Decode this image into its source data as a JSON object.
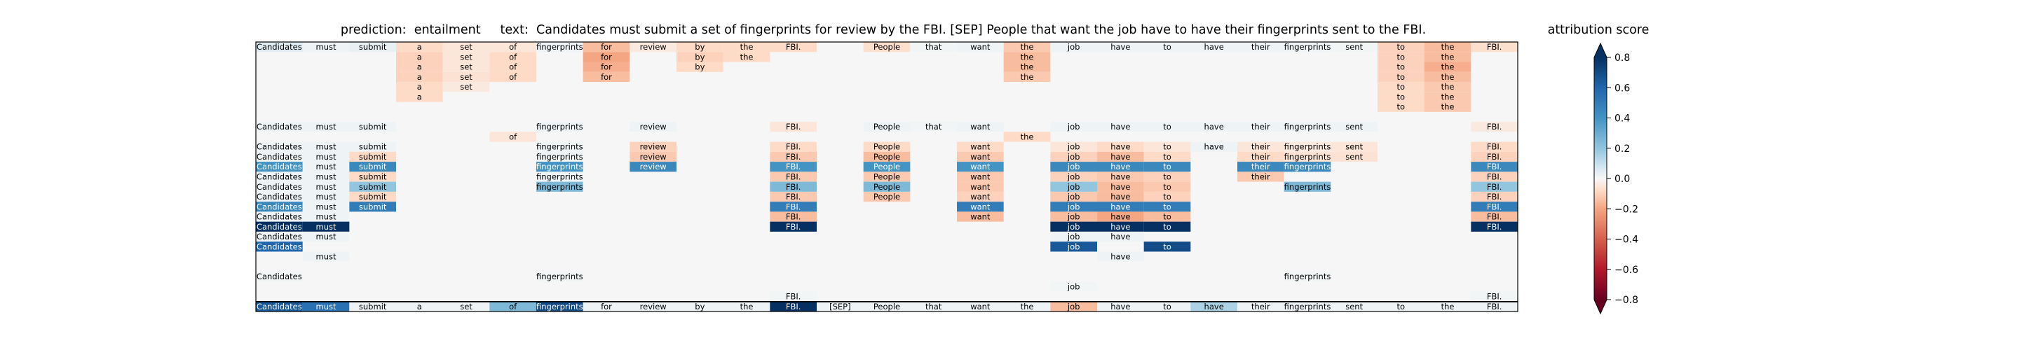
{
  "title": {
    "prefix": "prediction:",
    "prediction": "entailment",
    "text_prefix": "text:",
    "text": "Candidates must submit a set of fingerprints for review by the FBI. [SEP] People that want the job have to have their fingerprints sent to the FBI."
  },
  "colorbar": {
    "label": "attribution score",
    "ticks": [
      "0.8",
      "0.6",
      "0.4",
      "0.2",
      "0.0",
      "−0.2",
      "−0.4",
      "−0.6",
      "−0.8"
    ],
    "range": [
      -0.8,
      0.8
    ],
    "colormap": "RdBu",
    "extend": "both"
  },
  "colors": {
    "background": "#f6f6f6",
    "neg_strong": "#67001f",
    "neg_mid": "#d6604d",
    "neg_light": "#fddbc7",
    "neutral": "#f7f7f7",
    "pos_light": "#d1e5f0",
    "pos_mid": "#4393c3",
    "pos_strong": "#053061"
  },
  "chart_data": {
    "type": "heatmap",
    "columns": [
      "Candidates",
      "must",
      "submit",
      "a",
      "set",
      "of",
      "fingerprints",
      "for",
      "review",
      "by",
      "the",
      "FBI.",
      "[SEP]",
      "People",
      "that",
      "want",
      "the",
      "job",
      "have",
      "to",
      "have",
      "their",
      "fingerprints",
      "sent",
      "to",
      "the",
      "FBI."
    ],
    "rows": [
      {
        "Candidates": 0.05,
        "must": 0.02,
        "submit": 0.03,
        "a": -0.08,
        "set": -0.05,
        "of": -0.05,
        "fingerprints": 0.02,
        "for": -0.15,
        "review": -0.04,
        "by": -0.08,
        "the": -0.08,
        "FBI.": -0.08,
        "People": -0.07,
        "that": 0.01,
        "want": 0.02,
        "the#2": -0.12,
        "job": 0.02,
        "have": 0.02,
        "to": 0.02,
        "have#2": 0.02,
        "their": 0.02,
        "fingerprints#2": 0.02,
        "sent": 0.01,
        "to#2": -0.1,
        "the#3": -0.15,
        "FBI.#2": -0.07
      },
      {
        "a": -0.1,
        "set": -0.05,
        "of": -0.08,
        "for": -0.2,
        "by": -0.1,
        "the": -0.08,
        "the#2": -0.15,
        "to#2": -0.1,
        "the#3": -0.15
      },
      {
        "a": -0.1,
        "set": -0.05,
        "of": -0.08,
        "for": -0.18,
        "by": -0.08,
        "the#2": -0.15,
        "to#2": -0.1,
        "the#3": -0.18
      },
      {
        "a": -0.1,
        "set": -0.06,
        "of": -0.08,
        "for": -0.15,
        "the#2": -0.12,
        "to#2": -0.1,
        "the#3": -0.15
      },
      {
        "a": -0.08,
        "set": -0.04,
        "to#2": -0.08,
        "the#3": -0.12
      },
      {
        "a": -0.08,
        "to#2": -0.08,
        "the#3": -0.12
      },
      {
        "to#2": -0.08,
        "the#3": -0.12
      },
      {},
      {
        "Candidates": 0.02,
        "must": 0.02,
        "submit": 0.02,
        "fingerprints": 0.02,
        "review": 0.02,
        "FBI.": -0.05,
        "People": 0.02,
        "that": 0.01,
        "want": 0.02,
        "job": 0.02,
        "have": 0.02,
        "to": 0.02,
        "have#2": 0.02,
        "their": 0.02,
        "fingerprints#2": 0.02,
        "sent": 0.02,
        "FBI.#2": -0.04
      },
      {
        "of": -0.05,
        "the#2": -0.08
      },
      {
        "Candidates": 0.02,
        "must": 0.02,
        "submit": 0.02,
        "fingerprints": 0.02,
        "review": -0.1,
        "FBI.": -0.08,
        "People": -0.08,
        "want": -0.08,
        "job": -0.05,
        "have": -0.08,
        "to": -0.05,
        "have#2": 0.02,
        "their": -0.05,
        "fingerprints#2": -0.04,
        "sent": -0.05,
        "FBI.#2": -0.08
      },
      {
        "Candidates": 0.02,
        "must": 0.02,
        "submit": -0.08,
        "fingerprints": 0.02,
        "review": -0.12,
        "FBI.": -0.12,
        "People": -0.15,
        "want": -0.12,
        "job": -0.1,
        "have": -0.15,
        "to": -0.08,
        "their": -0.08,
        "fingerprints#2": -0.06,
        "sent": -0.06,
        "FBI.#2": -0.1
      },
      {
        "Candidates": 0.4,
        "must": 0.02,
        "submit": 0.45,
        "fingerprints": 0.4,
        "review": 0.45,
        "FBI.": 0.4,
        "People": 0.4,
        "want": 0.4,
        "job": 0.45,
        "have": 0.45,
        "to": 0.45,
        "their": 0.45,
        "fingerprints#2": 0.45,
        "FBI.#2": 0.45
      },
      {
        "Candidates": 0.02,
        "must": 0.02,
        "submit": -0.08,
        "fingerprints": 0.02,
        "FBI.": -0.12,
        "People": -0.12,
        "want": -0.12,
        "job": -0.1,
        "have": -0.12,
        "to": -0.1,
        "their": -0.12,
        "FBI.#2": -0.1
      },
      {
        "Candidates": 0.02,
        "must": 0.02,
        "submit": 0.2,
        "fingerprints": 0.25,
        "FBI.": 0.25,
        "People": 0.25,
        "want": -0.12,
        "job": 0.2,
        "have": -0.15,
        "to": -0.12,
        "fingerprints#2": 0.25,
        "FBI.#2": 0.2
      },
      {
        "Candidates": 0.02,
        "must": 0.02,
        "submit": -0.08,
        "FBI.": -0.12,
        "People": -0.12,
        "want": -0.1,
        "job": -0.12,
        "have": -0.15,
        "to": -0.1,
        "FBI.#2": -0.1
      },
      {
        "Candidates": 0.45,
        "must": 0.02,
        "submit": 0.5,
        "FBI.": 0.5,
        "want": 0.5,
        "job": 0.5,
        "have": 0.5,
        "to": 0.5,
        "FBI.#2": 0.5
      },
      {
        "Candidates": 0.02,
        "must": 0.02,
        "FBI.": -0.15,
        "want": -0.15,
        "job": -0.15,
        "have": -0.2,
        "to": -0.15,
        "FBI.#2": -0.15
      },
      {
        "Candidates": 0.8,
        "must": 0.85,
        "FBI.": 0.8,
        "job": 0.8,
        "have": 0.8,
        "to": 0.8,
        "FBI.#2": 0.8
      },
      {
        "Candidates": 0.02,
        "must": 0.02,
        "job": 0.02,
        "have": 0.02
      },
      {
        "Candidates": 0.6,
        "job": 0.65,
        "to": 0.7
      },
      {
        "must": 0.02,
        "have": 0.02
      },
      {},
      {
        "Candidates": 0.01,
        "fingerprints": 0.01,
        "fingerprints#2": 0.01
      },
      {
        "job": 0.01
      },
      {
        "FBI.": 0.01,
        "FBI.#2": 0.01
      },
      {
        "Candidates": 0.65,
        "must": 0.55,
        "submit": 0.02,
        "a": 0.02,
        "set": 0.02,
        "of": 0.25,
        "fingerprints": 0.7,
        "for": 0.02,
        "review": 0.02,
        "by": 0.02,
        "the": 0.02,
        "FBI.": 0.85,
        "[SEP]": 0.02,
        "People": 0.02,
        "that": 0.02,
        "want": 0.02,
        "the#2": 0.02,
        "job": -0.15,
        "have": 0.02,
        "to": 0.02,
        "have#2": 0.15,
        "their": 0.02,
        "fingerprints#2": 0.02,
        "sent": 0.02,
        "to#2": 0.02,
        "the#3": 0.02,
        "FBI.#2": 0.02
      }
    ]
  }
}
